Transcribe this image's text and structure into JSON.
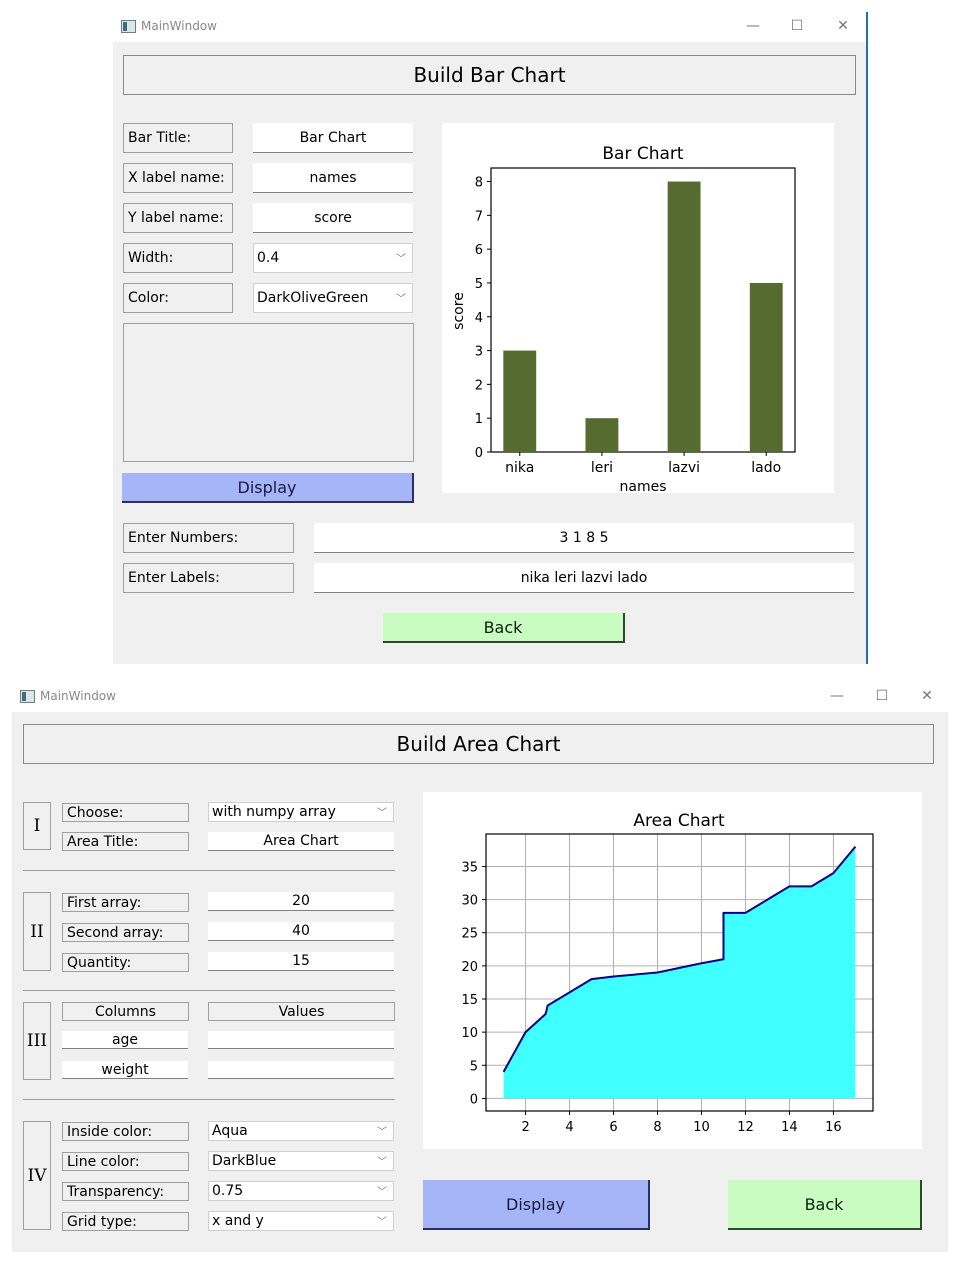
{
  "window1": {
    "title": "MainWindow",
    "controls": {
      "minimize": "—",
      "maximize": "☐",
      "close": "✕"
    },
    "header": "Build Bar Chart",
    "form": {
      "bar_title": {
        "label": "Bar Title:",
        "value": "Bar Chart"
      },
      "x_label": {
        "label": "X label name:",
        "value": "names"
      },
      "y_label": {
        "label": "Y label name:",
        "value": "score"
      },
      "width": {
        "label": "Width:",
        "value": "0.4"
      },
      "color": {
        "label": "Color:",
        "value": "DarkOliveGreen"
      }
    },
    "display_button": "Display",
    "numbers": {
      "label": "Enter Numbers:",
      "value": "3 1 8 5"
    },
    "labels": {
      "label": "Enter Labels:",
      "value": "nika leri lazvi lado"
    },
    "back_button": "Back"
  },
  "window2": {
    "title": "MainWindow",
    "controls": {
      "minimize": "—",
      "maximize": "☐",
      "close": "✕"
    },
    "header": "Build Area Chart",
    "section_I": {
      "numeral": "I",
      "choose": {
        "label": "Choose:",
        "value": "with numpy array"
      },
      "area_title": {
        "label": "Area Title:",
        "value": "Area Chart"
      }
    },
    "section_II": {
      "numeral": "II",
      "first_array": {
        "label": "First array:",
        "value": "20"
      },
      "second_array": {
        "label": "Second array:",
        "value": "40"
      },
      "quantity": {
        "label": "Quantity:",
        "value": "15"
      }
    },
    "section_III": {
      "numeral": "III",
      "columns_header": "Columns",
      "values_header": "Values",
      "rows": [
        {
          "column": "age",
          "value": ""
        },
        {
          "column": "weight",
          "value": ""
        }
      ]
    },
    "section_IV": {
      "numeral": "IV",
      "inside_color": {
        "label": "Inside color:",
        "value": "Aqua"
      },
      "line_color": {
        "label": "Line color:",
        "value": "DarkBlue"
      },
      "transparency": {
        "label": "Transparency:",
        "value": "0.75"
      },
      "grid_type": {
        "label": "Grid type:",
        "value": "x and y"
      }
    },
    "display_button": "Display",
    "back_button": "Back"
  },
  "colors": {
    "bar": "#556b2f",
    "area_fill": "#40ffff",
    "area_line": "#00008b",
    "display_btn": "#a6b4f8",
    "back_btn": "#c8fcc0"
  },
  "chart_data": [
    {
      "type": "bar",
      "title": "Bar Chart",
      "xlabel": "names",
      "ylabel": "score",
      "categories": [
        "nika",
        "leri",
        "lazvi",
        "lado"
      ],
      "values": [
        3,
        1,
        8,
        5
      ],
      "yticks": [
        "0",
        "1",
        "2",
        "3",
        "4",
        "5",
        "6",
        "7",
        "8"
      ],
      "ylim": [
        0,
        8.4
      ],
      "bar_width": 0.4,
      "color": "#556b2f",
      "grid": false
    },
    {
      "type": "area",
      "title": "Area Chart",
      "xlabel": "",
      "ylabel": "",
      "x": [
        1,
        2,
        2.9,
        2.95,
        3,
        4,
        5,
        6,
        8,
        10,
        11,
        11,
        12,
        13,
        14,
        15,
        16,
        17
      ],
      "y": [
        4,
        10,
        12.7,
        13.2,
        14,
        16,
        18,
        18.4,
        19,
        20.4,
        21,
        28,
        28,
        30,
        32,
        32,
        34,
        38
      ],
      "xticks": [
        "2",
        "4",
        "6",
        "8",
        "10",
        "12",
        "14",
        "16"
      ],
      "yticks": [
        "0",
        "5",
        "10",
        "15",
        "20",
        "25",
        "30",
        "35"
      ],
      "xlim": [
        0.2,
        17.8
      ],
      "ylim": [
        -1.9,
        39.9
      ],
      "fill_color": "#40ffff",
      "line_color": "#00008b",
      "alpha": 0.75,
      "grid": "x and y"
    }
  ]
}
